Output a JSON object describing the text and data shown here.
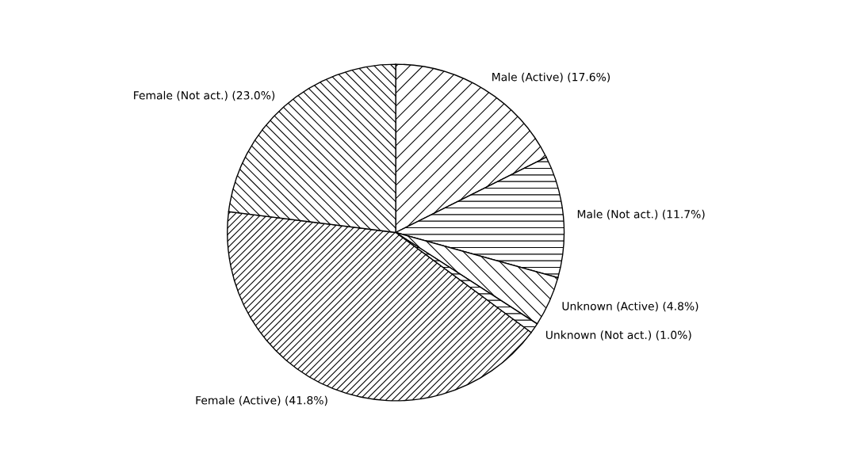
{
  "chart_data": {
    "type": "pie",
    "categories": [
      "Male (Active)",
      "Male (Not act.)",
      "Unknown (Active)",
      "Unknown (Not act.)",
      "Female (Active)",
      "Female (Not act.)"
    ],
    "values": [
      17.6,
      11.7,
      4.8,
      1.0,
      41.8,
      23.0
    ],
    "value_labels": [
      "(17.6%)",
      "(11.7%)",
      "(4.8%)",
      "(1.0%)",
      "(41.8%)",
      "(23.0%)"
    ],
    "colors": [
      "#ffffff",
      "#ffffff",
      "#ffffff",
      "#ffffff",
      "#ffffff",
      "#ffffff"
    ],
    "legend": false
  }
}
